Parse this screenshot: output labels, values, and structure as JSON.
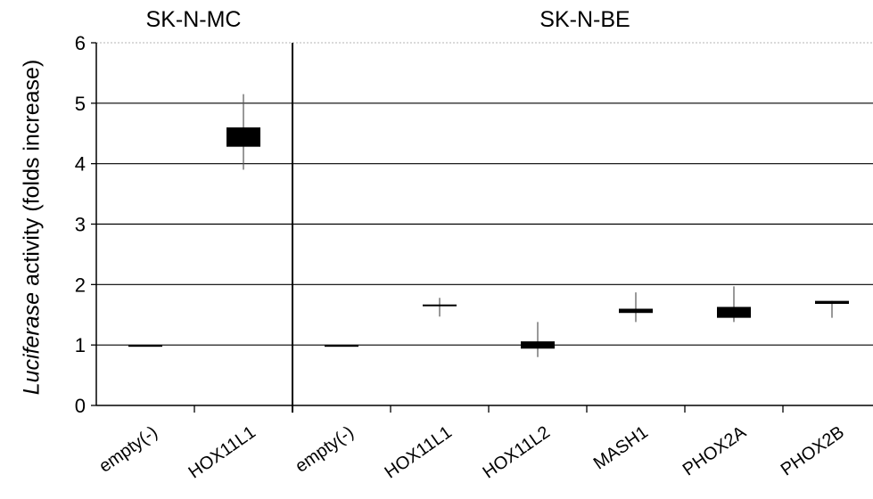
{
  "chart_data": {
    "type": "box",
    "panels": [
      {
        "title": "SK-N-MC",
        "categories": [
          "empty(-)",
          "HOX11L1"
        ]
      },
      {
        "title": "SK-N-BE",
        "categories": [
          "empty(-)",
          "HOX11L1",
          "HOX11L2",
          "MASH1",
          "PHOX2A",
          "PHOX2B"
        ]
      }
    ],
    "categories": [
      "empty(-)",
      "HOX11L1",
      "empty(-)",
      "HOX11L1",
      "HOX11L2",
      "MASH1",
      "PHOX2A",
      "PHOX2B"
    ],
    "series": [
      {
        "values": [
          {
            "low": 1.0,
            "q1": 1.0,
            "q3": 1.0,
            "high": 1.0
          },
          {
            "low": 3.9,
            "q1": 4.28,
            "q3": 4.6,
            "high": 5.15
          },
          {
            "low": 1.0,
            "q1": 1.0,
            "q3": 1.0,
            "high": 1.0
          },
          {
            "low": 1.47,
            "q1": 1.65,
            "q3": 1.67,
            "high": 1.78
          },
          {
            "low": 0.8,
            "q1": 0.94,
            "q3": 1.06,
            "high": 1.38
          },
          {
            "low": 1.38,
            "q1": 1.53,
            "q3": 1.6,
            "high": 1.87
          },
          {
            "low": 1.38,
            "q1": 1.45,
            "q3": 1.63,
            "high": 1.97
          },
          {
            "low": 1.45,
            "q1": 1.68,
            "q3": 1.73,
            "high": 1.73
          }
        ]
      }
    ],
    "ylabel_italic": "Luciferase",
    "ylabel_rest": " activity (folds increase)",
    "ylim": [
      0,
      6
    ],
    "yticks": [
      0,
      1,
      2,
      3,
      4,
      5,
      6
    ],
    "grid": true
  }
}
